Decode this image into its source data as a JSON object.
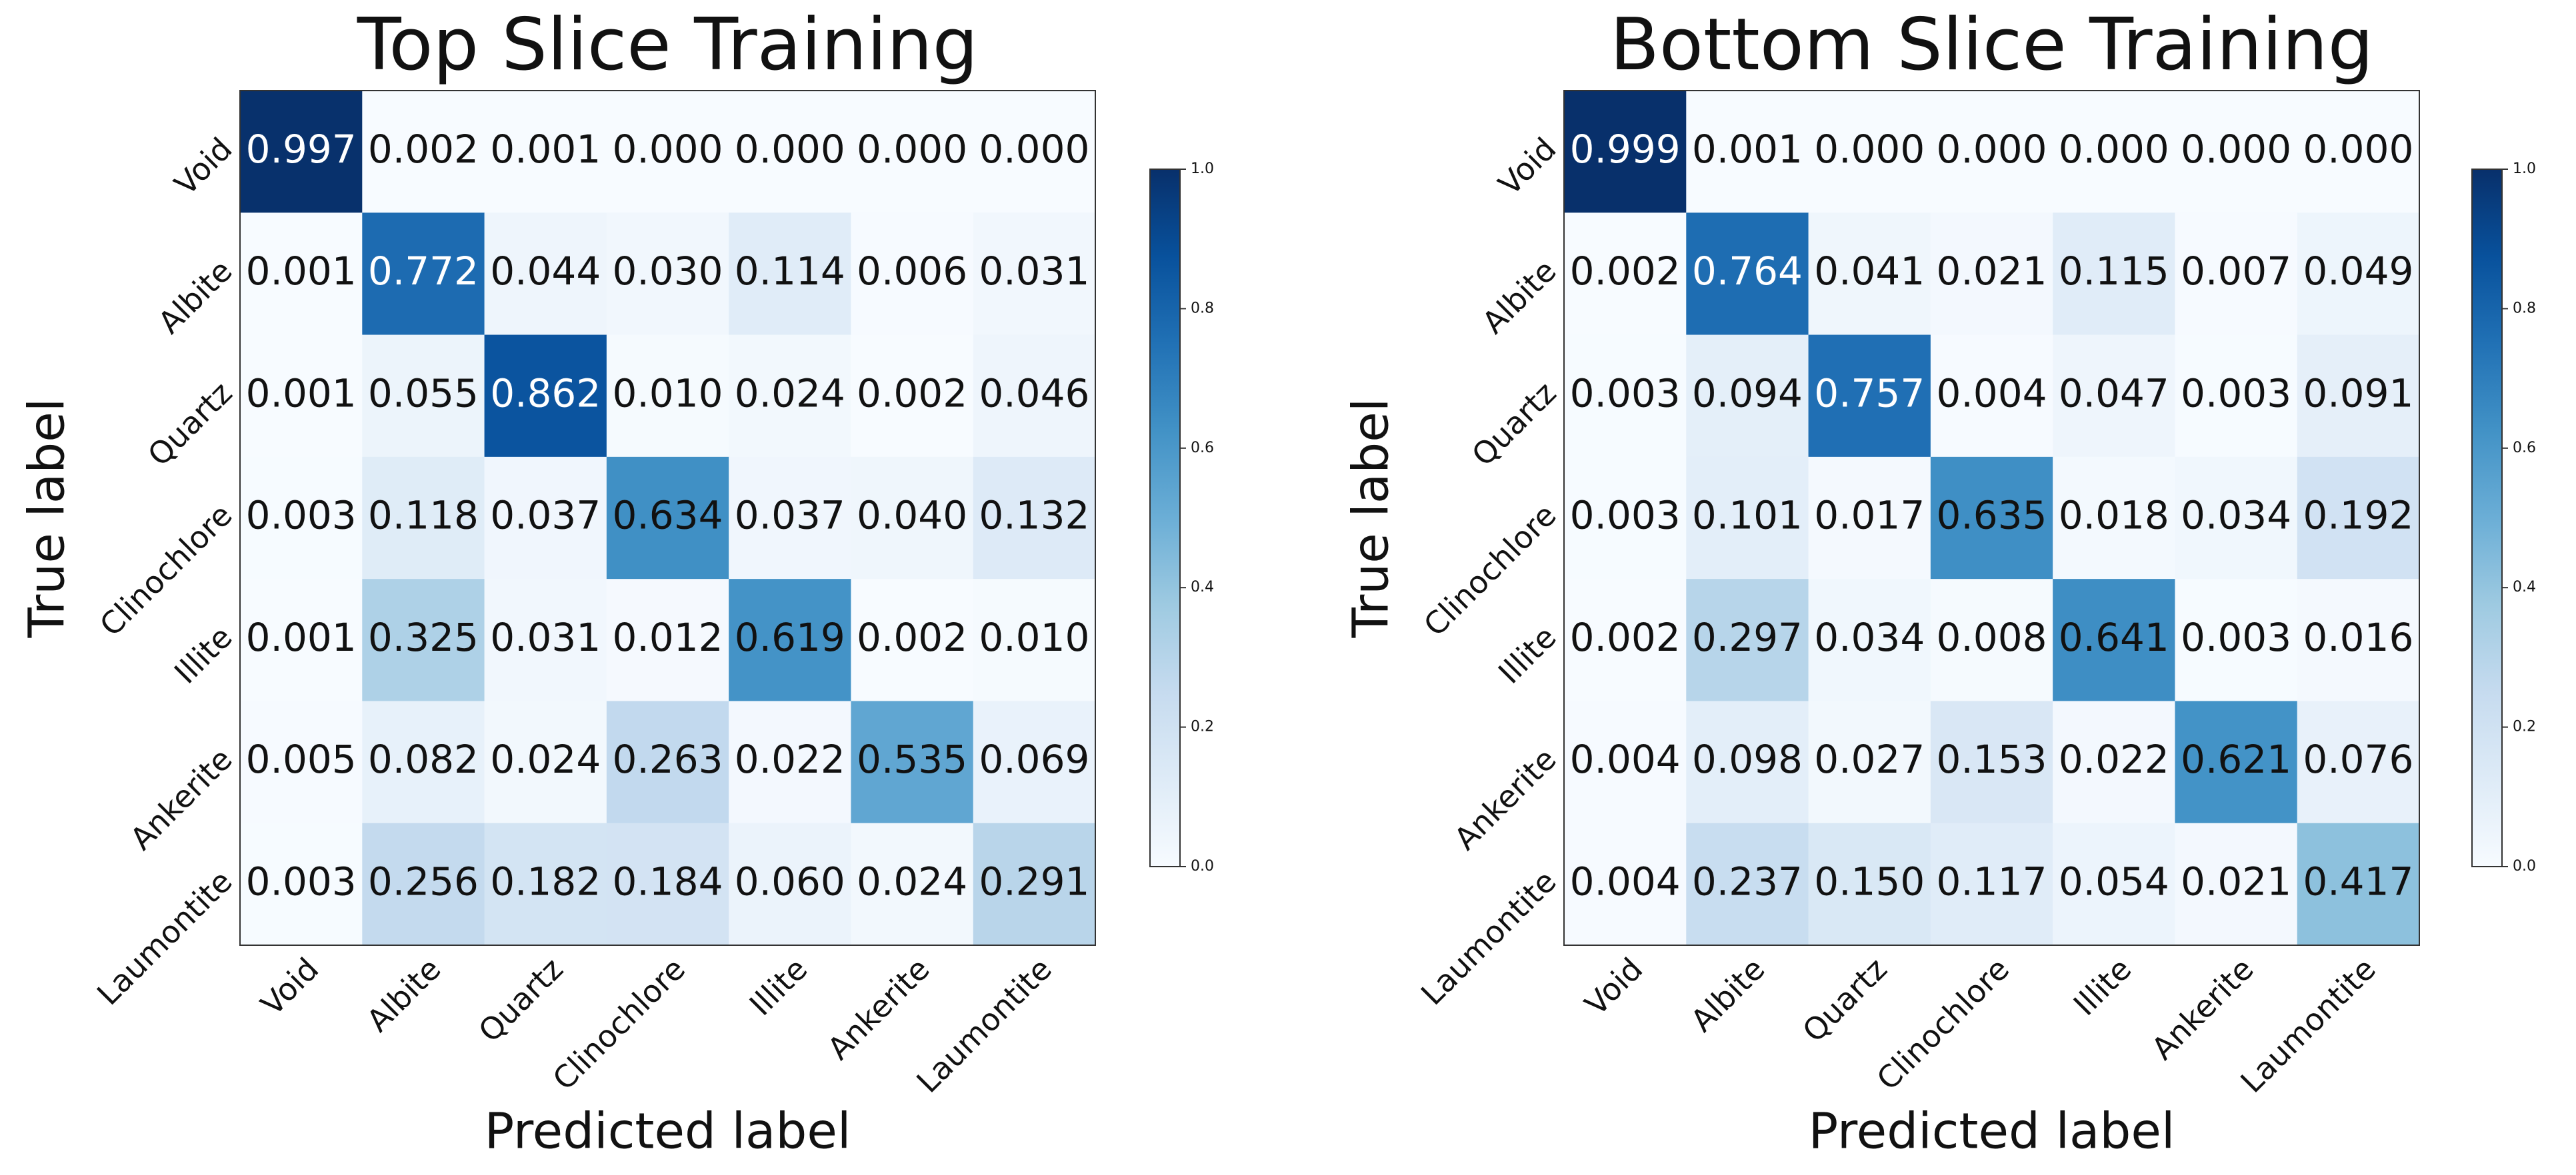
{
  "chart_data": [
    {
      "type": "heatmap",
      "title": "Top Slice Training",
      "xlabel": "Predicted label",
      "ylabel": "True label",
      "categories": [
        "Void",
        "Albite",
        "Quartz",
        "Clinochlore",
        "Illite",
        "Ankerite",
        "Laumontite"
      ],
      "values": [
        [
          0.997,
          0.002,
          0.001,
          0,
          0,
          0,
          0
        ],
        [
          0.001,
          0.772,
          0.044,
          0.03,
          0.114,
          0.006,
          0.031
        ],
        [
          0.001,
          0.055,
          0.862,
          0.01,
          0.024,
          0.002,
          0.046
        ],
        [
          0.003,
          0.118,
          0.037,
          0.634,
          0.037,
          0.04,
          0.132
        ],
        [
          0.001,
          0.325,
          0.031,
          0.012,
          0.619,
          0.002,
          0.01
        ],
        [
          0.005,
          0.082,
          0.024,
          0.263,
          0.022,
          0.535,
          0.069
        ],
        [
          0.003,
          0.256,
          0.182,
          0.184,
          0.06,
          0.024,
          0.291
        ]
      ],
      "value_labels": [
        [
          "0.997",
          "0.002",
          "0.001",
          "0.000",
          "0.000",
          "0.000",
          "0.000"
        ],
        [
          "0.001",
          "0.772",
          "0.044",
          "0.030",
          "0.114",
          "0.006",
          "0.031"
        ],
        [
          "0.001",
          "0.055",
          "0.862",
          "0.010",
          "0.024",
          "0.002",
          "0.046"
        ],
        [
          "0.003",
          "0.118",
          "0.037",
          "0.634",
          "0.037",
          "0.040",
          "0.132"
        ],
        [
          "0.001",
          "0.325",
          "0.031",
          "0.012",
          "0.619",
          "0.002",
          "0.010"
        ],
        [
          "0.005",
          "0.082",
          "0.024",
          "0.263",
          "0.022",
          "0.535",
          "0.069"
        ],
        [
          "0.003",
          "0.256",
          "0.182",
          "0.184",
          "0.060",
          "0.024",
          "0.291"
        ]
      ],
      "colormap": "Blues",
      "clim": [
        0,
        1
      ],
      "cticks": [
        {
          "value": 0,
          "label": "0.0"
        },
        {
          "value": 0.2,
          "label": "0.2"
        },
        {
          "value": 0.4,
          "label": "0.4"
        },
        {
          "value": 0.6,
          "label": "0.6"
        },
        {
          "value": 0.8,
          "label": "0.8"
        },
        {
          "value": 1,
          "label": "1.0"
        }
      ]
    },
    {
      "type": "heatmap",
      "title": "Bottom Slice Training",
      "xlabel": "Predicted label",
      "ylabel": "True label",
      "categories": [
        "Void",
        "Albite",
        "Quartz",
        "Clinochlore",
        "Illite",
        "Ankerite",
        "Laumontite"
      ],
      "values": [
        [
          0.999,
          0.001,
          0,
          0,
          0,
          0,
          0
        ],
        [
          0.002,
          0.764,
          0.041,
          0.021,
          0.115,
          0.007,
          0.049
        ],
        [
          0.003,
          0.094,
          0.757,
          0.004,
          0.047,
          0.003,
          0.091
        ],
        [
          0.003,
          0.101,
          0.017,
          0.635,
          0.018,
          0.034,
          0.192
        ],
        [
          0.002,
          0.297,
          0.034,
          0.008,
          0.641,
          0.003,
          0.016
        ],
        [
          0.004,
          0.098,
          0.027,
          0.153,
          0.022,
          0.621,
          0.076
        ],
        [
          0.004,
          0.237,
          0.15,
          0.117,
          0.054,
          0.021,
          0.417
        ]
      ],
      "value_labels": [
        [
          "0.999",
          "0.001",
          "0.000",
          "0.000",
          "0.000",
          "0.000",
          "0.000"
        ],
        [
          "0.002",
          "0.764",
          "0.041",
          "0.021",
          "0.115",
          "0.007",
          "0.049"
        ],
        [
          "0.003",
          "0.094",
          "0.757",
          "0.004",
          "0.047",
          "0.003",
          "0.091"
        ],
        [
          "0.003",
          "0.101",
          "0.017",
          "0.635",
          "0.018",
          "0.034",
          "0.192"
        ],
        [
          "0.002",
          "0.297",
          "0.034",
          "0.008",
          "0.641",
          "0.003",
          "0.016"
        ],
        [
          "0.004",
          "0.098",
          "0.027",
          "0.153",
          "0.022",
          "0.621",
          "0.076"
        ],
        [
          "0.004",
          "0.237",
          "0.150",
          "0.117",
          "0.054",
          "0.021",
          "0.417"
        ]
      ],
      "colormap": "Blues",
      "clim": [
        0,
        1
      ],
      "cticks": [
        {
          "value": 0,
          "label": "0.0"
        },
        {
          "value": 0.2,
          "label": "0.2"
        },
        {
          "value": 0.4,
          "label": "0.4"
        },
        {
          "value": 0.6,
          "label": "0.6"
        },
        {
          "value": 0.8,
          "label": "0.8"
        },
        {
          "value": 1,
          "label": "1.0"
        }
      ]
    }
  ]
}
